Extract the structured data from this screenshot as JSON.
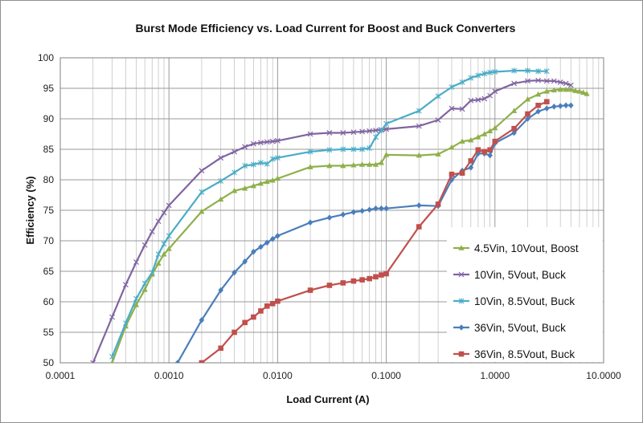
{
  "chart_data": {
    "type": "line",
    "title": "Burst Mode Efficiency vs. Load Current for Boost and Buck Converters",
    "xlabel": "Load Current (A)",
    "ylabel": "Efficiency (%)",
    "x_scale": "log",
    "xlim": [
      0.0001,
      10
    ],
    "ylim": [
      50,
      100
    ],
    "x_ticks": [
      0.0001,
      0.001,
      0.01,
      0.1,
      1,
      10
    ],
    "x_tick_labels": [
      "0.0001",
      "0.0010",
      "0.0100",
      "0.1000",
      "1.0000",
      "10.0000"
    ],
    "y_ticks": [
      50,
      55,
      60,
      65,
      70,
      75,
      80,
      85,
      90,
      95,
      100
    ],
    "y_tick_labels": [
      "50",
      "55",
      "60",
      "65",
      "70",
      "75",
      "80",
      "85",
      "90",
      "95",
      "100"
    ],
    "grid": "major and minor vertical, major horizontal",
    "legend_position": "bottom-right",
    "series": [
      {
        "name": "4.5Vin, 10Vout, Boost",
        "color": "#8fb04a",
        "marker": "triangle",
        "x": [
          0.0003,
          0.0004,
          0.0005,
          0.0006,
          0.0007,
          0.0008,
          0.0009,
          0.001,
          0.002,
          0.003,
          0.004,
          0.005,
          0.006,
          0.007,
          0.008,
          0.009,
          0.01,
          0.02,
          0.03,
          0.04,
          0.05,
          0.06,
          0.07,
          0.08,
          0.09,
          0.1,
          0.2,
          0.3,
          0.4,
          0.5,
          0.6,
          0.7,
          0.8,
          0.9,
          1,
          1.5,
          2,
          2.5,
          3,
          3.5,
          4,
          4.5,
          5,
          5.5,
          6,
          6.5,
          7
        ],
        "y": [
          50,
          56,
          59.5,
          62,
          64.5,
          66.3,
          67.8,
          68.7,
          74.8,
          76.8,
          78.2,
          78.6,
          79,
          79.4,
          79.7,
          79.9,
          80.2,
          82.1,
          82.3,
          82.3,
          82.4,
          82.5,
          82.5,
          82.5,
          82.8,
          84.1,
          84,
          84.2,
          85.3,
          86.3,
          86.5,
          87,
          87.5,
          88,
          88.5,
          91.3,
          93.2,
          94,
          94.5,
          94.7,
          94.8,
          94.8,
          94.8,
          94.6,
          94.5,
          94.3,
          94.1
        ]
      },
      {
        "name": "10Vin, 5Vout, Buck",
        "color": "#8064a2",
        "marker": "x",
        "x": [
          0.0002,
          0.0003,
          0.0004,
          0.0005,
          0.0006,
          0.0007,
          0.0008,
          0.0009,
          0.001,
          0.002,
          0.003,
          0.004,
          0.005,
          0.006,
          0.007,
          0.008,
          0.009,
          0.01,
          0.02,
          0.03,
          0.04,
          0.05,
          0.06,
          0.07,
          0.08,
          0.09,
          0.1,
          0.2,
          0.3,
          0.4,
          0.5,
          0.6,
          0.7,
          0.8,
          0.9,
          1,
          1.5,
          2,
          2.5,
          3,
          3.5,
          4,
          4.5,
          5
        ],
        "y": [
          50,
          57.5,
          62.8,
          66.5,
          69.3,
          71.5,
          73.2,
          74.6,
          75.8,
          81.5,
          83.6,
          84.6,
          85.4,
          85.9,
          86.1,
          86.2,
          86.3,
          86.4,
          87.5,
          87.7,
          87.7,
          87.8,
          87.9,
          88,
          88.1,
          88.2,
          88.3,
          88.8,
          89.8,
          91.7,
          91.6,
          93,
          93.1,
          93.3,
          93.8,
          94.5,
          95.8,
          96.2,
          96.3,
          96.2,
          96.2,
          96,
          95.8,
          95.5
        ]
      },
      {
        "name": "10Vin, 8.5Vout, Buck",
        "color": "#4bacc6",
        "marker": "star",
        "x": [
          0.0003,
          0.0004,
          0.0005,
          0.0006,
          0.0007,
          0.0008,
          0.0009,
          0.001,
          0.002,
          0.003,
          0.004,
          0.005,
          0.006,
          0.007,
          0.008,
          0.009,
          0.01,
          0.02,
          0.03,
          0.04,
          0.05,
          0.06,
          0.07,
          0.08,
          0.09,
          0.1,
          0.2,
          0.3,
          0.4,
          0.5,
          0.6,
          0.7,
          0.8,
          0.9,
          1,
          1.5,
          2,
          2.5,
          3
        ],
        "y": [
          51,
          56.5,
          60.5,
          63,
          64.8,
          67.8,
          69.5,
          70.8,
          78,
          79.8,
          81.2,
          82.3,
          82.5,
          82.8,
          82.6,
          83.4,
          83.6,
          84.6,
          84.9,
          85,
          85,
          85,
          85.2,
          87,
          88.1,
          89.2,
          91.3,
          93.7,
          95.2,
          96,
          96.7,
          97.1,
          97.4,
          97.6,
          97.7,
          97.9,
          97.9,
          97.8,
          97.8
        ]
      },
      {
        "name": "36Vin, 5Vout, Buck",
        "color": "#4a7ebb",
        "marker": "diamond",
        "x": [
          0.0012,
          0.002,
          0.003,
          0.004,
          0.005,
          0.006,
          0.007,
          0.008,
          0.009,
          0.01,
          0.02,
          0.03,
          0.04,
          0.05,
          0.06,
          0.07,
          0.08,
          0.09,
          0.1,
          0.2,
          0.3,
          0.4,
          0.5,
          0.6,
          0.7,
          0.8,
          0.9,
          1,
          1.5,
          2,
          2.5,
          3,
          3.5,
          4,
          4.5,
          5
        ],
        "y": [
          50,
          57,
          61.9,
          64.8,
          66.6,
          68.2,
          69,
          69.7,
          70.3,
          70.8,
          73,
          73.8,
          74.3,
          74.7,
          74.9,
          75.1,
          75.3,
          75.3,
          75.3,
          75.8,
          75.7,
          80,
          81.5,
          82,
          84.3,
          84.3,
          84,
          86,
          87.7,
          90,
          91.2,
          91.7,
          92,
          92.1,
          92.2,
          92.2
        ]
      },
      {
        "name": "36Vin, 8.5Vout, Buck",
        "color": "#c0504d",
        "marker": "square",
        "x": [
          0.002,
          0.003,
          0.004,
          0.005,
          0.006,
          0.007,
          0.008,
          0.009,
          0.01,
          0.02,
          0.03,
          0.04,
          0.05,
          0.06,
          0.07,
          0.08,
          0.09,
          0.1,
          0.2,
          0.3,
          0.4,
          0.5,
          0.6,
          0.7,
          0.8,
          0.9,
          1,
          1.5,
          2,
          2.5,
          3
        ],
        "y": [
          50,
          52.4,
          55,
          56.6,
          57.5,
          58.5,
          59.3,
          59.7,
          60.1,
          61.9,
          62.7,
          63.1,
          63.4,
          63.6,
          63.8,
          64.1,
          64.4,
          64.6,
          72.3,
          76,
          80.9,
          81.1,
          83.1,
          84.9,
          84.6,
          84.9,
          86.3,
          88.4,
          90.8,
          92.2,
          92.8
        ]
      }
    ]
  }
}
